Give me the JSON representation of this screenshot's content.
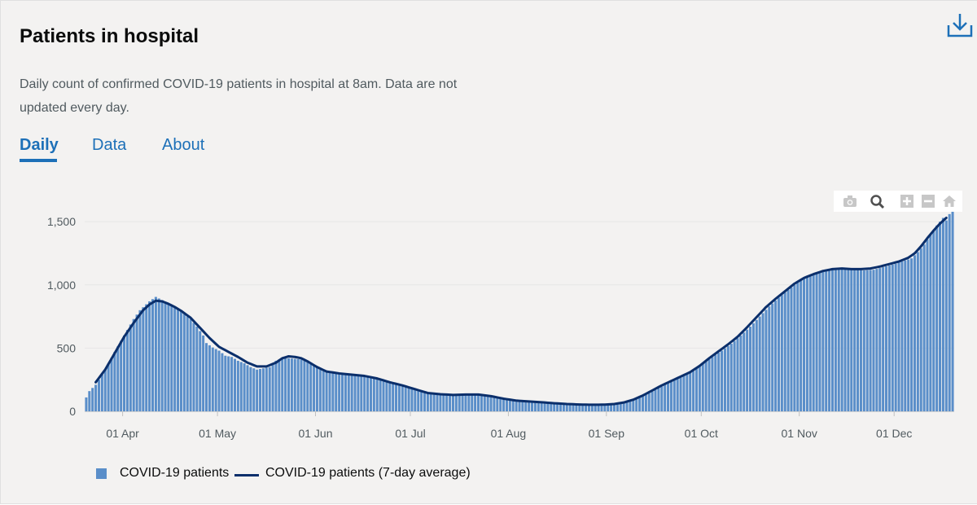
{
  "card": {
    "title": "Patients in hospital",
    "description": "Daily count of confirmed COVID-19 patients in hospital at 8am. Data are not updated every day."
  },
  "tabs": [
    {
      "label": "Daily",
      "active": true
    },
    {
      "label": "Data",
      "active": false
    },
    {
      "label": "About",
      "active": false
    }
  ],
  "icons": {
    "download": "download-icon",
    "modebar": [
      "camera-icon",
      "zoom-icon",
      "zoom-in-icon",
      "zoom-out-icon",
      "home-icon"
    ]
  },
  "colors": {
    "bar": "#5a8ec9",
    "line": "#0b2f6b",
    "accent": "#1d70b8"
  },
  "chart_data": {
    "type": "bar",
    "xlabel": "",
    "ylabel": "",
    "start_date": "2020-03-20",
    "ylim": [
      0,
      1630
    ],
    "yticks": [
      0,
      500,
      1000,
      1500
    ],
    "ytick_labels": [
      "0",
      "500",
      "1,000",
      "1,500"
    ],
    "xtick_dates": [
      "2020-04-01",
      "2020-05-01",
      "2020-06-01",
      "2020-07-01",
      "2020-08-01",
      "2020-09-01",
      "2020-10-01",
      "2020-11-01",
      "2020-12-01"
    ],
    "xtick_labels": [
      "01 Apr",
      "01 May",
      "01 Jun",
      "01 Jul",
      "01 Aug",
      "01 Sep",
      "01 Oct",
      "01 Nov",
      "01 Dec"
    ],
    "grid": true,
    "legend_position": "bottom-left",
    "series": [
      {
        "name": "COVID-19 patients",
        "kind": "bar",
        "anchors": [
          [
            0,
            110
          ],
          [
            1,
            160
          ],
          [
            3,
            210
          ],
          [
            6,
            330
          ],
          [
            9,
            470
          ],
          [
            12,
            600
          ],
          [
            15,
            730
          ],
          [
            17,
            800
          ],
          [
            20,
            870
          ],
          [
            22,
            905
          ],
          [
            24,
            880
          ],
          [
            26,
            850
          ],
          [
            28,
            820
          ],
          [
            30,
            790
          ],
          [
            33,
            730
          ],
          [
            35,
            670
          ],
          [
            37,
            600
          ],
          [
            38,
            540
          ],
          [
            40,
            505
          ],
          [
            42,
            480
          ],
          [
            44,
            440
          ],
          [
            46,
            430
          ],
          [
            48,
            400
          ],
          [
            50,
            380
          ],
          [
            52,
            350
          ],
          [
            54,
            330
          ],
          [
            56,
            340
          ],
          [
            58,
            350
          ],
          [
            60,
            400
          ],
          [
            62,
            420
          ],
          [
            64,
            420
          ],
          [
            66,
            415
          ],
          [
            68,
            410
          ],
          [
            70,
            390
          ],
          [
            72,
            360
          ],
          [
            74,
            330
          ],
          [
            76,
            310
          ],
          [
            80,
            300
          ],
          [
            84,
            290
          ],
          [
            87,
            285
          ],
          [
            90,
            275
          ],
          [
            94,
            250
          ],
          [
            98,
            220
          ],
          [
            102,
            190
          ],
          [
            106,
            160
          ],
          [
            110,
            140
          ],
          [
            114,
            130
          ],
          [
            118,
            128
          ],
          [
            122,
            135
          ],
          [
            126,
            130
          ],
          [
            130,
            110
          ],
          [
            134,
            90
          ],
          [
            138,
            80
          ],
          [
            142,
            75
          ],
          [
            146,
            68
          ],
          [
            150,
            60
          ],
          [
            154,
            55
          ],
          [
            158,
            52
          ],
          [
            162,
            52
          ],
          [
            166,
            55
          ],
          [
            168,
            60
          ],
          [
            171,
            75
          ],
          [
            174,
            100
          ],
          [
            177,
            130
          ],
          [
            180,
            170
          ],
          [
            183,
            210
          ],
          [
            186,
            245
          ],
          [
            189,
            280
          ],
          [
            192,
            320
          ],
          [
            195,
            375
          ],
          [
            198,
            430
          ],
          [
            201,
            480
          ],
          [
            204,
            535
          ],
          [
            207,
            600
          ],
          [
            210,
            670
          ],
          [
            213,
            750
          ],
          [
            216,
            830
          ],
          [
            219,
            900
          ],
          [
            222,
            960
          ],
          [
            225,
            1020
          ],
          [
            228,
            1060
          ],
          [
            231,
            1090
          ],
          [
            234,
            1110
          ],
          [
            237,
            1125
          ],
          [
            240,
            1130
          ],
          [
            243,
            1120
          ],
          [
            246,
            1115
          ],
          [
            249,
            1120
          ],
          [
            252,
            1140
          ],
          [
            255,
            1160
          ],
          [
            258,
            1185
          ],
          [
            261,
            1210
          ],
          [
            263,
            1260
          ],
          [
            265,
            1320
          ],
          [
            267,
            1400
          ],
          [
            269,
            1470
          ],
          [
            271,
            1530
          ],
          [
            272,
            1510
          ],
          [
            273,
            1560
          ],
          [
            274,
            1590
          ]
        ]
      },
      {
        "name": "COVID-19 patients (7-day average)",
        "kind": "line",
        "anchors": [
          [
            3,
            230
          ],
          [
            6,
            330
          ],
          [
            9,
            460
          ],
          [
            12,
            590
          ],
          [
            15,
            700
          ],
          [
            18,
            800
          ],
          [
            20,
            845
          ],
          [
            22,
            875
          ],
          [
            24,
            870
          ],
          [
            26,
            850
          ],
          [
            28,
            825
          ],
          [
            30,
            795
          ],
          [
            33,
            740
          ],
          [
            36,
            660
          ],
          [
            39,
            580
          ],
          [
            42,
            510
          ],
          [
            45,
            470
          ],
          [
            48,
            430
          ],
          [
            51,
            385
          ],
          [
            54,
            355
          ],
          [
            57,
            355
          ],
          [
            60,
            385
          ],
          [
            62,
            420
          ],
          [
            64,
            435
          ],
          [
            66,
            430
          ],
          [
            68,
            420
          ],
          [
            70,
            395
          ],
          [
            73,
            350
          ],
          [
            76,
            315
          ],
          [
            80,
            300
          ],
          [
            84,
            290
          ],
          [
            88,
            280
          ],
          [
            92,
            260
          ],
          [
            96,
            230
          ],
          [
            100,
            205
          ],
          [
            104,
            175
          ],
          [
            108,
            145
          ],
          [
            112,
            135
          ],
          [
            116,
            130
          ],
          [
            120,
            133
          ],
          [
            124,
            133
          ],
          [
            128,
            120
          ],
          [
            132,
            100
          ],
          [
            136,
            85
          ],
          [
            140,
            78
          ],
          [
            144,
            72
          ],
          [
            148,
            64
          ],
          [
            152,
            58
          ],
          [
            156,
            54
          ],
          [
            160,
            52
          ],
          [
            164,
            53
          ],
          [
            167,
            58
          ],
          [
            170,
            70
          ],
          [
            173,
            92
          ],
          [
            176,
            125
          ],
          [
            179,
            165
          ],
          [
            182,
            205
          ],
          [
            185,
            240
          ],
          [
            188,
            275
          ],
          [
            191,
            310
          ],
          [
            194,
            360
          ],
          [
            197,
            420
          ],
          [
            200,
            475
          ],
          [
            203,
            530
          ],
          [
            206,
            590
          ],
          [
            209,
            665
          ],
          [
            212,
            745
          ],
          [
            215,
            825
          ],
          [
            218,
            890
          ],
          [
            221,
            950
          ],
          [
            224,
            1010
          ],
          [
            227,
            1055
          ],
          [
            230,
            1085
          ],
          [
            233,
            1110
          ],
          [
            236,
            1125
          ],
          [
            239,
            1130
          ],
          [
            242,
            1125
          ],
          [
            245,
            1125
          ],
          [
            248,
            1130
          ],
          [
            251,
            1145
          ],
          [
            254,
            1165
          ],
          [
            257,
            1185
          ],
          [
            260,
            1215
          ],
          [
            262,
            1250
          ],
          [
            264,
            1305
          ],
          [
            266,
            1370
          ],
          [
            268,
            1430
          ],
          [
            270,
            1485
          ],
          [
            272,
            1530
          ]
        ]
      }
    ]
  }
}
